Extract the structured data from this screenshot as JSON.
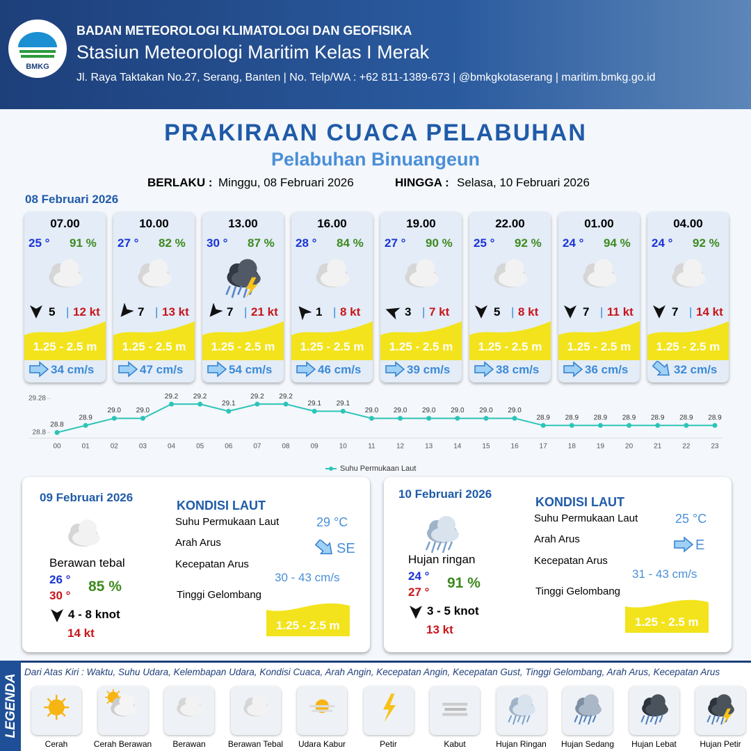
{
  "header": {
    "logo": "BMKG",
    "agency": "BADAN METEOROLOGI KLIMATOLOGI DAN GEOFISIKA",
    "station": "Stasiun Meteorologi Maritim Kelas I Merak",
    "address": "Jl. Raya Taktakan No.27, Serang, Banten | No. Telp/WA : +62 811-1389-673 | @bmkgkotaserang | maritim.bmkg.go.id"
  },
  "title": "PRAKIRAAN CUACA PELABUHAN",
  "subtitle": "Pelabuhan Binuangeun",
  "validity": {
    "from_label": "BERLAKU :",
    "from": "Minggu, 08 Februari 2026",
    "to_label": "HINGGA :",
    "to": "Selasa, 10 Februari 2026"
  },
  "day1": {
    "date": "08 Februari 2026",
    "hours": [
      {
        "time": "07.00",
        "temp": "25 °",
        "humidity": "91 %",
        "wind": "5",
        "gust": "12 kt",
        "wave": "1.25 - 2.5 m",
        "current": "34 cm/s"
      },
      {
        "time": "10.00",
        "temp": "27 °",
        "humidity": "82 %",
        "wind": "7",
        "gust": "13 kt",
        "wave": "1.25 - 2.5 m",
        "current": "47 cm/s"
      },
      {
        "time": "13.00",
        "temp": "30 °",
        "humidity": "87 %",
        "wind": "7",
        "gust": "21 kt",
        "wave": "1.25 - 2.5 m",
        "current": "54 cm/s"
      },
      {
        "time": "16.00",
        "temp": "28 °",
        "humidity": "84 %",
        "wind": "1",
        "gust": "8 kt",
        "wave": "1.25 - 2.5 m",
        "current": "46 cm/s"
      },
      {
        "time": "19.00",
        "temp": "27 °",
        "humidity": "90 %",
        "wind": "3",
        "gust": "7 kt",
        "wave": "1.25 - 2.5 m",
        "current": "39 cm/s"
      },
      {
        "time": "22.00",
        "temp": "25 °",
        "humidity": "92 %",
        "wind": "5",
        "gust": "8 kt",
        "wave": "1.25 - 2.5 m",
        "current": "38 cm/s"
      },
      {
        "time": "01.00",
        "temp": "24 °",
        "humidity": "94 %",
        "wind": "7",
        "gust": "11 kt",
        "wave": "1.25 - 2.5 m",
        "current": "36 cm/s"
      },
      {
        "time": "04.00",
        "temp": "24 °",
        "humidity": "92 %",
        "wind": "7",
        "gust": "14 kt",
        "wave": "1.25 - 2.5 m",
        "current": "32 cm/s"
      }
    ]
  },
  "chart_data": {
    "type": "line",
    "categories": [
      "00",
      "01",
      "02",
      "03",
      "04",
      "05",
      "06",
      "07",
      "08",
      "09",
      "10",
      "11",
      "12",
      "13",
      "14",
      "15",
      "16",
      "17",
      "18",
      "19",
      "20",
      "21",
      "22",
      "23"
    ],
    "series": [
      {
        "name": "Suhu Permukaan Laut",
        "color": "#2cc4b8",
        "values": [
          28.8,
          28.9,
          29.0,
          29.0,
          29.2,
          29.2,
          29.1,
          29.2,
          29.2,
          29.1,
          29.1,
          29.0,
          29.0,
          29.0,
          29.0,
          29.0,
          29.0,
          28.9,
          28.9,
          28.9,
          28.9,
          28.9,
          28.9,
          28.9
        ],
        "value_labels": [
          "28.8",
          "28.9",
          "29.0",
          "29.0",
          "29.2",
          "29.2",
          "29.1",
          "29.2",
          "29.2",
          "29.1",
          "29.1",
          "29.0",
          "29.0",
          "29.0",
          "29.0",
          "29.0",
          "29.0",
          "28.9",
          "28.9",
          "28.9",
          "28.9",
          "28.9",
          "28.9",
          "28.9"
        ]
      }
    ],
    "ylim": [
      28.8,
      29.28
    ],
    "yticks": [
      28.8,
      29.28
    ],
    "grid": false,
    "legend": "bottom"
  },
  "days": [
    {
      "date": "09 Februari 2026",
      "condition": "Berawan tebal",
      "temp_min": "26 °",
      "temp_max": "30 °",
      "humidity": "85 %",
      "wind": "4  - 8 knot",
      "gust": "14 kt",
      "heading": "KONDISI LAUT",
      "sst_label": "Suhu Permukaan Laut",
      "sst": "29 °C",
      "dir_label": "Arah Arus",
      "dir": "SE",
      "speed_label": "Kecepatan Arus",
      "speed": "30 - 43 cm/s",
      "wave_label": "Tinggi Gelombang",
      "wave": "1.25 - 2.5 m"
    },
    {
      "date": "10 Februari 2026",
      "condition": "Hujan ringan",
      "temp_min": "24 °",
      "temp_max": "27 °",
      "humidity": "91 %",
      "wind": "3  - 5 knot",
      "gust": "13 kt",
      "heading": "KONDISI LAUT",
      "sst_label": "Suhu Permukaan Laut",
      "sst": "25 °C",
      "dir_label": "Arah Arus",
      "dir": "E",
      "speed_label": "Kecepatan Arus",
      "speed": "31  - 43 cm/s",
      "wave_label": "Tinggi Gelombang",
      "wave": "1.25 - 2.5 m"
    }
  ],
  "legend": {
    "title": "LEGENDA",
    "description": "Dari Atas Kiri : Waktu, Suhu Udara, Kelembapan Udara, Kondisi Cuaca, Arah Angin, Kecepatan Angin, Kecepatan Gust, Tinggi Gelombang, Arah Arus, Kecepatan Arus",
    "items": [
      "Cerah",
      "Cerah Berawan",
      "Berawan",
      "Berawan Tebal",
      "Udara Kabur",
      "Petir",
      "Kabut",
      "Hujan Ringan",
      "Hujan Sedang",
      "Hujan Lebat",
      "Hujan Petir"
    ]
  }
}
